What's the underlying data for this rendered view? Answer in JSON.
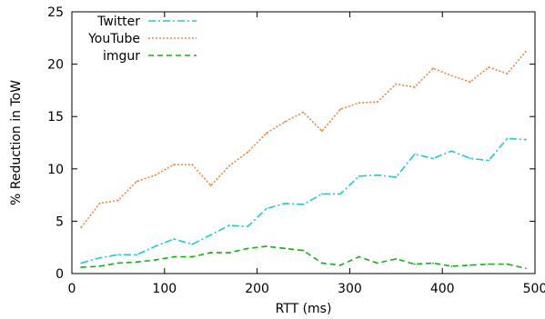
{
  "chart_data": {
    "type": "line",
    "title": "",
    "xlabel": "RTT (ms)",
    "ylabel": "% Reduction in ToW",
    "xlim": [
      0,
      500
    ],
    "ylim": [
      0,
      25
    ],
    "xticks": [
      0,
      100,
      200,
      300,
      400,
      500
    ],
    "yticks": [
      0,
      5,
      10,
      15,
      20,
      25
    ],
    "grid": false,
    "legend_position": "top-left",
    "x": [
      10,
      30,
      50,
      70,
      90,
      110,
      130,
      150,
      170,
      190,
      210,
      230,
      250,
      270,
      290,
      310,
      330,
      350,
      370,
      390,
      410,
      430,
      450,
      470,
      490
    ],
    "series": [
      {
        "name": "Twitter",
        "color": "#1fc8d8",
        "dash": "8,3,2,3",
        "values": [
          1.0,
          1.5,
          1.8,
          1.8,
          2.6,
          3.3,
          2.8,
          3.7,
          4.6,
          4.5,
          6.2,
          6.7,
          6.6,
          7.6,
          7.6,
          9.3,
          9.4,
          9.2,
          11.4,
          11.0,
          11.7,
          11.0,
          10.8,
          12.9,
          12.8
        ]
      },
      {
        "name": "YouTube",
        "color": "#f5843c",
        "dash": "2,2",
        "values": [
          4.4,
          6.7,
          7.0,
          8.8,
          9.4,
          10.4,
          10.4,
          8.4,
          10.3,
          11.6,
          13.4,
          14.5,
          15.4,
          13.6,
          15.7,
          16.3,
          16.4,
          18.1,
          17.8,
          19.6,
          18.9,
          18.3,
          19.7,
          19.1,
          21.2
        ]
      },
      {
        "name": "imgur",
        "color": "#13b013",
        "dash": "6,4",
        "values": [
          0.6,
          0.7,
          1.0,
          1.1,
          1.3,
          1.6,
          1.6,
          2.0,
          2.0,
          2.4,
          2.6,
          2.4,
          2.2,
          1.0,
          0.8,
          1.6,
          1.0,
          1.4,
          0.9,
          1.0,
          0.7,
          0.8,
          0.9,
          0.9,
          0.5
        ]
      }
    ]
  }
}
